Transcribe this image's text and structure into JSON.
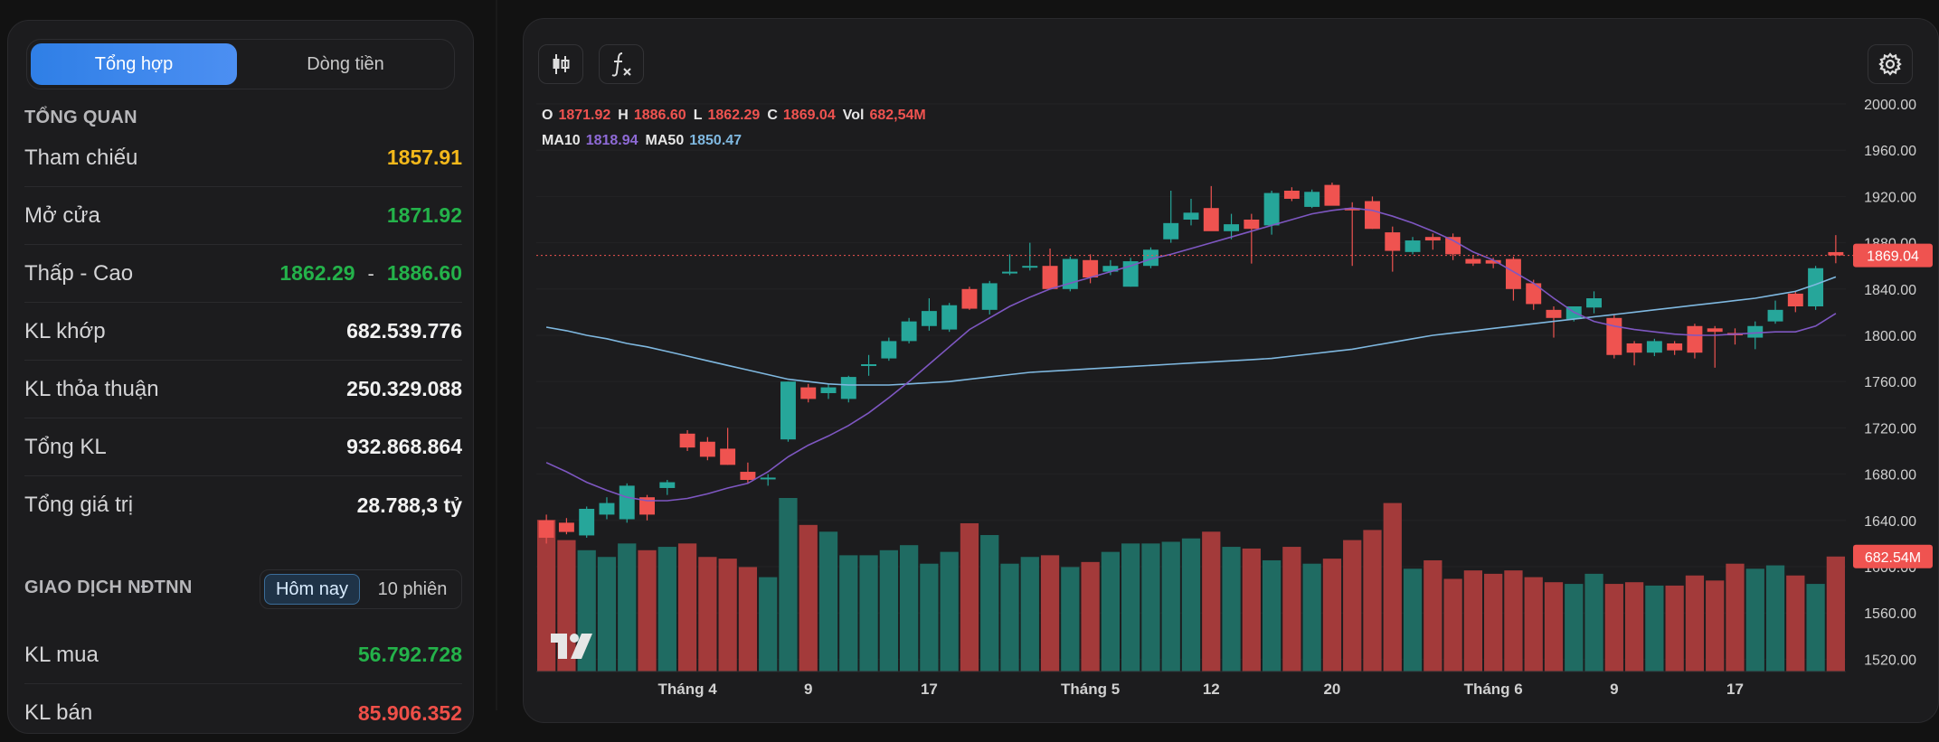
{
  "tabs": {
    "active": "Tổng hợp",
    "inactive": "Dòng tiền"
  },
  "overview": {
    "title": "TỔNG QUAN",
    "reference": {
      "label": "Tham chiếu",
      "value": "1857.91"
    },
    "open": {
      "label": "Mở cửa",
      "value": "1871.92"
    },
    "low_high": {
      "label": "Thấp - Cao",
      "low": "1862.29",
      "sep": "-",
      "high": "1886.60"
    },
    "matched_volume": {
      "label": "KL khớp",
      "value": "682.539.776"
    },
    "negotiated_volume": {
      "label": "KL thỏa thuận",
      "value": "250.329.088"
    },
    "total_volume": {
      "label": "Tổng KL",
      "value": "932.868.864"
    },
    "total_value": {
      "label": "Tổng giá trị",
      "value": "28.788,3 tỷ"
    }
  },
  "foreign": {
    "title": "GIAO DỊCH NĐTNN",
    "periods": [
      "Hôm nay",
      "10 phiên"
    ],
    "buy": {
      "label": "KL mua",
      "value": "56.792.728"
    },
    "sell": {
      "label": "KL bán",
      "value": "85.906.352"
    }
  },
  "legend": {
    "o_label": "O",
    "o": "1871.92",
    "h_label": "H",
    "h": "1886.60",
    "l_label": "L",
    "l": "1862.29",
    "c_label": "C",
    "c": "1869.04",
    "vol_label": "Vol",
    "vol": "682,54M",
    "ma10_label": "MA10",
    "ma10": "1818.94",
    "ma50_label": "MA50",
    "ma50": "1850.47"
  },
  "toolbar_icons": [
    "candlestick-icon",
    "function-icon",
    "gear-icon"
  ],
  "colors": {
    "up": "#26a69a",
    "down": "#ef5350",
    "ma10": "#7e57c2",
    "ma50": "#7fb8e0",
    "price_label": "#ef5350"
  },
  "chart_data": {
    "type": "candlestick",
    "y_ticks": [
      "2000.00",
      "1960.00",
      "1920.00",
      "1880.00",
      "1840.00",
      "1800.00",
      "1760.00",
      "1720.00",
      "1680.00",
      "1640.00",
      "1600.00",
      "1560.00",
      "1520.00"
    ],
    "ylim": [
      1500,
      2000
    ],
    "x_ticks": [
      {
        "label": "Tháng 4",
        "index": 7
      },
      {
        "label": "9",
        "index": 13
      },
      {
        "label": "17",
        "index": 19
      },
      {
        "label": "Tháng 5",
        "index": 27
      },
      {
        "label": "12",
        "index": 33
      },
      {
        "label": "20",
        "index": 39
      },
      {
        "label": "Tháng 6",
        "index": 47
      },
      {
        "label": "9",
        "index": 53
      },
      {
        "label": "17",
        "index": 59
      }
    ],
    "last_price_label": "1869.04",
    "last_volume_label": "682.54M",
    "candles": [
      {
        "o": 1640,
        "h": 1645,
        "l": 1620,
        "c": 1625
      },
      {
        "o": 1638,
        "h": 1642,
        "l": 1628,
        "c": 1630
      },
      {
        "o": 1627,
        "h": 1652,
        "l": 1625,
        "c": 1650
      },
      {
        "o": 1645,
        "h": 1660,
        "l": 1641,
        "c": 1655
      },
      {
        "o": 1641,
        "h": 1672,
        "l": 1638,
        "c": 1670
      },
      {
        "o": 1660,
        "h": 1662,
        "l": 1640,
        "c": 1645
      },
      {
        "o": 1668,
        "h": 1675,
        "l": 1662,
        "c": 1673
      },
      {
        "o": 1715,
        "h": 1718,
        "l": 1700,
        "c": 1703
      },
      {
        "o": 1708,
        "h": 1712,
        "l": 1692,
        "c": 1695
      },
      {
        "o": 1702,
        "h": 1720,
        "l": 1688,
        "c": 1688
      },
      {
        "o": 1682,
        "h": 1690,
        "l": 1672,
        "c": 1675
      },
      {
        "o": 1677,
        "h": 1680,
        "l": 1670,
        "c": 1677
      },
      {
        "o": 1710,
        "h": 1760,
        "l": 1708,
        "c": 1760
      },
      {
        "o": 1755,
        "h": 1758,
        "l": 1742,
        "c": 1745
      },
      {
        "o": 1750,
        "h": 1758,
        "l": 1745,
        "c": 1755
      },
      {
        "o": 1745,
        "h": 1765,
        "l": 1742,
        "c": 1764
      },
      {
        "o": 1775,
        "h": 1783,
        "l": 1765,
        "c": 1775
      },
      {
        "o": 1780,
        "h": 1798,
        "l": 1778,
        "c": 1795
      },
      {
        "o": 1795,
        "h": 1815,
        "l": 1793,
        "c": 1812
      },
      {
        "o": 1808,
        "h": 1832,
        "l": 1804,
        "c": 1821
      },
      {
        "o": 1805,
        "h": 1828,
        "l": 1803,
        "c": 1826
      },
      {
        "o": 1840,
        "h": 1842,
        "l": 1822,
        "c": 1823
      },
      {
        "o": 1822,
        "h": 1847,
        "l": 1818,
        "c": 1845
      },
      {
        "o": 1855,
        "h": 1870,
        "l": 1852,
        "c": 1855
      },
      {
        "o": 1860,
        "h": 1880,
        "l": 1856,
        "c": 1860
      },
      {
        "o": 1860,
        "h": 1875,
        "l": 1840,
        "c": 1840
      },
      {
        "o": 1840,
        "h": 1868,
        "l": 1838,
        "c": 1866
      },
      {
        "o": 1865,
        "h": 1870,
        "l": 1845,
        "c": 1850
      },
      {
        "o": 1855,
        "h": 1865,
        "l": 1852,
        "c": 1860
      },
      {
        "o": 1842,
        "h": 1867,
        "l": 1842,
        "c": 1864
      },
      {
        "o": 1860,
        "h": 1876,
        "l": 1858,
        "c": 1874
      },
      {
        "o": 1883,
        "h": 1925,
        "l": 1880,
        "c": 1897
      },
      {
        "o": 1900,
        "h": 1918,
        "l": 1895,
        "c": 1906
      },
      {
        "o": 1910,
        "h": 1929,
        "l": 1893,
        "c": 1890
      },
      {
        "o": 1890,
        "h": 1905,
        "l": 1883,
        "c": 1896
      },
      {
        "o": 1900,
        "h": 1905,
        "l": 1862,
        "c": 1892
      },
      {
        "o": 1895,
        "h": 1925,
        "l": 1887,
        "c": 1923
      },
      {
        "o": 1925,
        "h": 1928,
        "l": 1916,
        "c": 1918
      },
      {
        "o": 1911,
        "h": 1926,
        "l": 1910,
        "c": 1924
      },
      {
        "o": 1930,
        "h": 1932,
        "l": 1913,
        "c": 1912
      },
      {
        "o": 1910,
        "h": 1915,
        "l": 1860,
        "c": 1908
      },
      {
        "o": 1916,
        "h": 1920,
        "l": 1892,
        "c": 1892
      },
      {
        "o": 1889,
        "h": 1894,
        "l": 1855,
        "c": 1873
      },
      {
        "o": 1872,
        "h": 1885,
        "l": 1870,
        "c": 1882
      },
      {
        "o": 1885,
        "h": 1888,
        "l": 1874,
        "c": 1882
      },
      {
        "o": 1885,
        "h": 1888,
        "l": 1865,
        "c": 1870
      },
      {
        "o": 1866,
        "h": 1869,
        "l": 1860,
        "c": 1862
      },
      {
        "o": 1865,
        "h": 1867,
        "l": 1858,
        "c": 1862
      },
      {
        "o": 1866,
        "h": 1868,
        "l": 1830,
        "c": 1840
      },
      {
        "o": 1845,
        "h": 1848,
        "l": 1822,
        "c": 1827
      },
      {
        "o": 1822,
        "h": 1825,
        "l": 1798,
        "c": 1815
      },
      {
        "o": 1814,
        "h": 1825,
        "l": 1812,
        "c": 1825
      },
      {
        "o": 1824,
        "h": 1838,
        "l": 1819,
        "c": 1832
      },
      {
        "o": 1815,
        "h": 1818,
        "l": 1780,
        "c": 1783
      },
      {
        "o": 1793,
        "h": 1795,
        "l": 1774,
        "c": 1785
      },
      {
        "o": 1785,
        "h": 1797,
        "l": 1782,
        "c": 1795
      },
      {
        "o": 1793,
        "h": 1795,
        "l": 1783,
        "c": 1787
      },
      {
        "o": 1808,
        "h": 1810,
        "l": 1780,
        "c": 1785
      },
      {
        "o": 1806,
        "h": 1808,
        "l": 1772,
        "c": 1803
      },
      {
        "o": 1802,
        "h": 1806,
        "l": 1792,
        "c": 1800
      },
      {
        "o": 1798,
        "h": 1812,
        "l": 1788,
        "c": 1808
      },
      {
        "o": 1812,
        "h": 1830,
        "l": 1810,
        "c": 1822
      },
      {
        "o": 1836,
        "h": 1838,
        "l": 1820,
        "c": 1825
      },
      {
        "o": 1825,
        "h": 1860,
        "l": 1822,
        "c": 1858
      },
      {
        "o": 1871.92,
        "h": 1886.6,
        "l": 1862.29,
        "c": 1869.04
      }
    ],
    "volumes_M": [
      900,
      780,
      720,
      680,
      760,
      720,
      740,
      760,
      680,
      670,
      620,
      560,
      1030,
      870,
      830,
      690,
      690,
      720,
      750,
      640,
      710,
      880,
      810,
      640,
      680,
      690,
      620,
      650,
      710,
      760,
      760,
      770,
      790,
      830,
      740,
      730,
      660,
      740,
      640,
      670,
      780,
      840,
      1000,
      610,
      660,
      550,
      600,
      580,
      600,
      560,
      530,
      520,
      580,
      520,
      530,
      510,
      510,
      570,
      540,
      640,
      610,
      630,
      570,
      520,
      682.54
    ],
    "ma10": [
      1690,
      1682,
      1673,
      1666,
      1660,
      1657,
      1657,
      1659,
      1663,
      1668,
      1672,
      1682,
      1695,
      1705,
      1713,
      1722,
      1733,
      1746,
      1760,
      1775,
      1790,
      1805,
      1815,
      1825,
      1833,
      1840,
      1845,
      1850,
      1855,
      1860,
      1866,
      1870,
      1875,
      1880,
      1885,
      1890,
      1895,
      1900,
      1905,
      1908,
      1910,
      1908,
      1903,
      1897,
      1890,
      1882,
      1872,
      1865,
      1855,
      1845,
      1832,
      1820,
      1812,
      1808,
      1805,
      1803,
      1801,
      1800,
      1800,
      1801,
      1802,
      1803,
      1803,
      1808,
      1818.94
    ],
    "ma50": [
      1807,
      1804,
      1800,
      1797,
      1793,
      1790,
      1786,
      1782,
      1778,
      1774,
      1770,
      1766,
      1762,
      1760,
      1758,
      1757,
      1757,
      1757,
      1758,
      1759,
      1760,
      1762,
      1764,
      1766,
      1768,
      1769,
      1770,
      1771,
      1772,
      1773,
      1774,
      1775,
      1776,
      1777,
      1778,
      1779,
      1780,
      1782,
      1784,
      1786,
      1788,
      1791,
      1794,
      1797,
      1800,
      1802,
      1804,
      1806,
      1808,
      1810,
      1812,
      1814,
      1816,
      1818,
      1820,
      1822,
      1824,
      1826,
      1828,
      1830,
      1832,
      1835,
      1838,
      1844,
      1850.47
    ]
  }
}
